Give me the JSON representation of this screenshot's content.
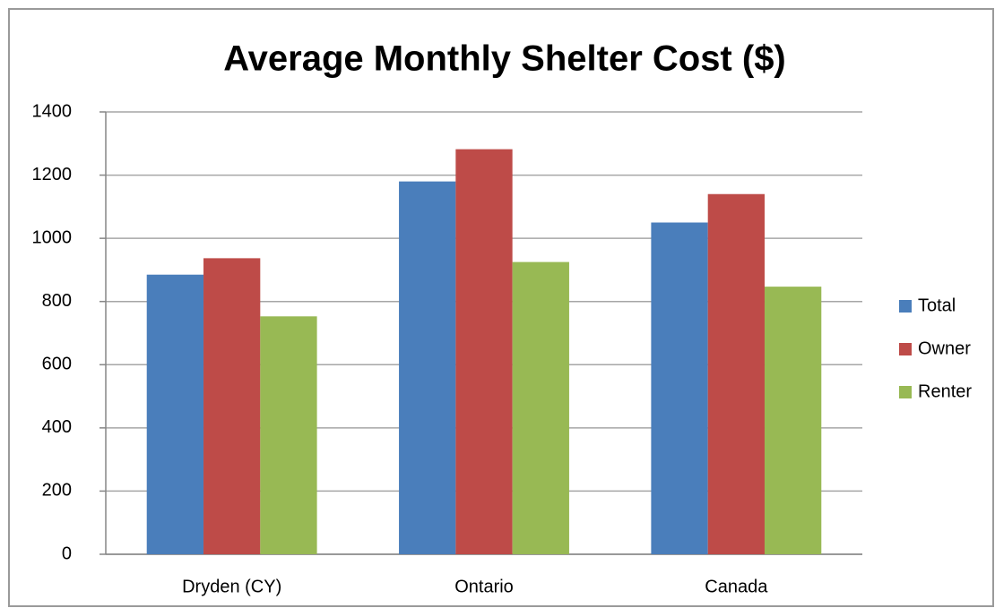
{
  "chart_data": {
    "type": "bar",
    "title": "Average Monthly Shelter Cost ($)",
    "categories": [
      "Dryden (CY)",
      "Ontario",
      "Canada"
    ],
    "series": [
      {
        "name": "Total",
        "color": "#4a7ebb",
        "values": [
          885,
          1180,
          1050
        ]
      },
      {
        "name": "Owner",
        "color": "#be4b48",
        "values": [
          937,
          1282,
          1140
        ]
      },
      {
        "name": "Renter",
        "color": "#98b954",
        "values": [
          753,
          925,
          847
        ]
      }
    ],
    "ylim": [
      0,
      1400
    ],
    "yticks": [
      0,
      200,
      400,
      600,
      800,
      1000,
      1200,
      1400
    ],
    "grid": true,
    "legend": "right"
  }
}
